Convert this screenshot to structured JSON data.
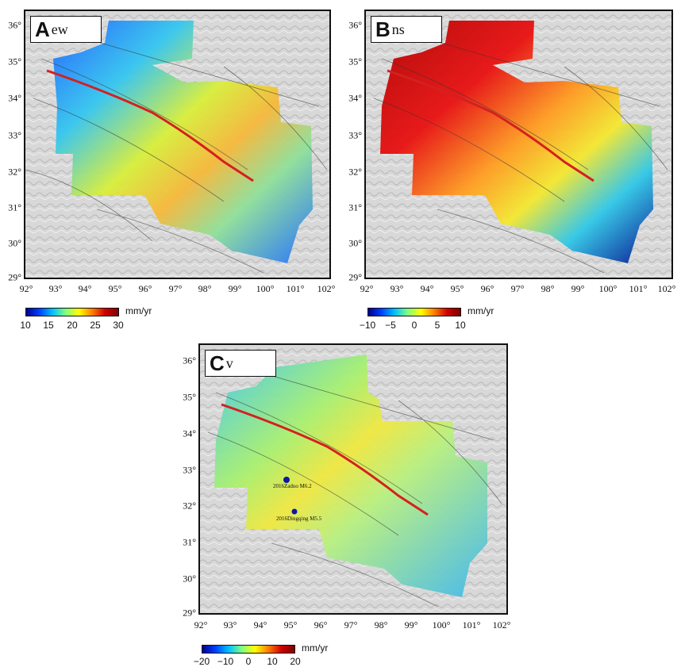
{
  "panels": [
    {
      "letter": "A",
      "component": "ew"
    },
    {
      "letter": "B",
      "component": "ns"
    },
    {
      "letter": "C",
      "component": "v"
    }
  ],
  "axes": {
    "x_ticks": [
      "92°",
      "93°",
      "94°",
      "95°",
      "96°",
      "97°",
      "98°",
      "99°",
      "100°",
      "101°",
      "102°"
    ],
    "y_ticks": [
      "36°",
      "35°",
      "34°",
      "33°",
      "32°",
      "31°",
      "30°",
      "29°"
    ]
  },
  "colorbars": [
    {
      "unit": "mm/yr",
      "ticks": [
        "10",
        "15",
        "20",
        "25",
        "30"
      ],
      "range": [
        10,
        30
      ]
    },
    {
      "unit": "mm/yr",
      "ticks": [
        "−10",
        "−5",
        "0",
        "5",
        "10"
      ],
      "range": [
        -10,
        10
      ]
    },
    {
      "unit": "mm/yr",
      "ticks": [
        "−20",
        "−10",
        "0",
        "10",
        "20"
      ],
      "range": [
        -20,
        20
      ]
    }
  ],
  "earthquakes": [
    {
      "label": "2016Zaduo M6.2"
    },
    {
      "label": "2016Dingqing M5.5"
    }
  ],
  "colors": {
    "fault_trace": "#d42020",
    "colormap": [
      "#00008f",
      "#0040ff",
      "#00c0ff",
      "#80ff80",
      "#ffff00",
      "#ff8000",
      "#d00000",
      "#800000"
    ]
  }
}
